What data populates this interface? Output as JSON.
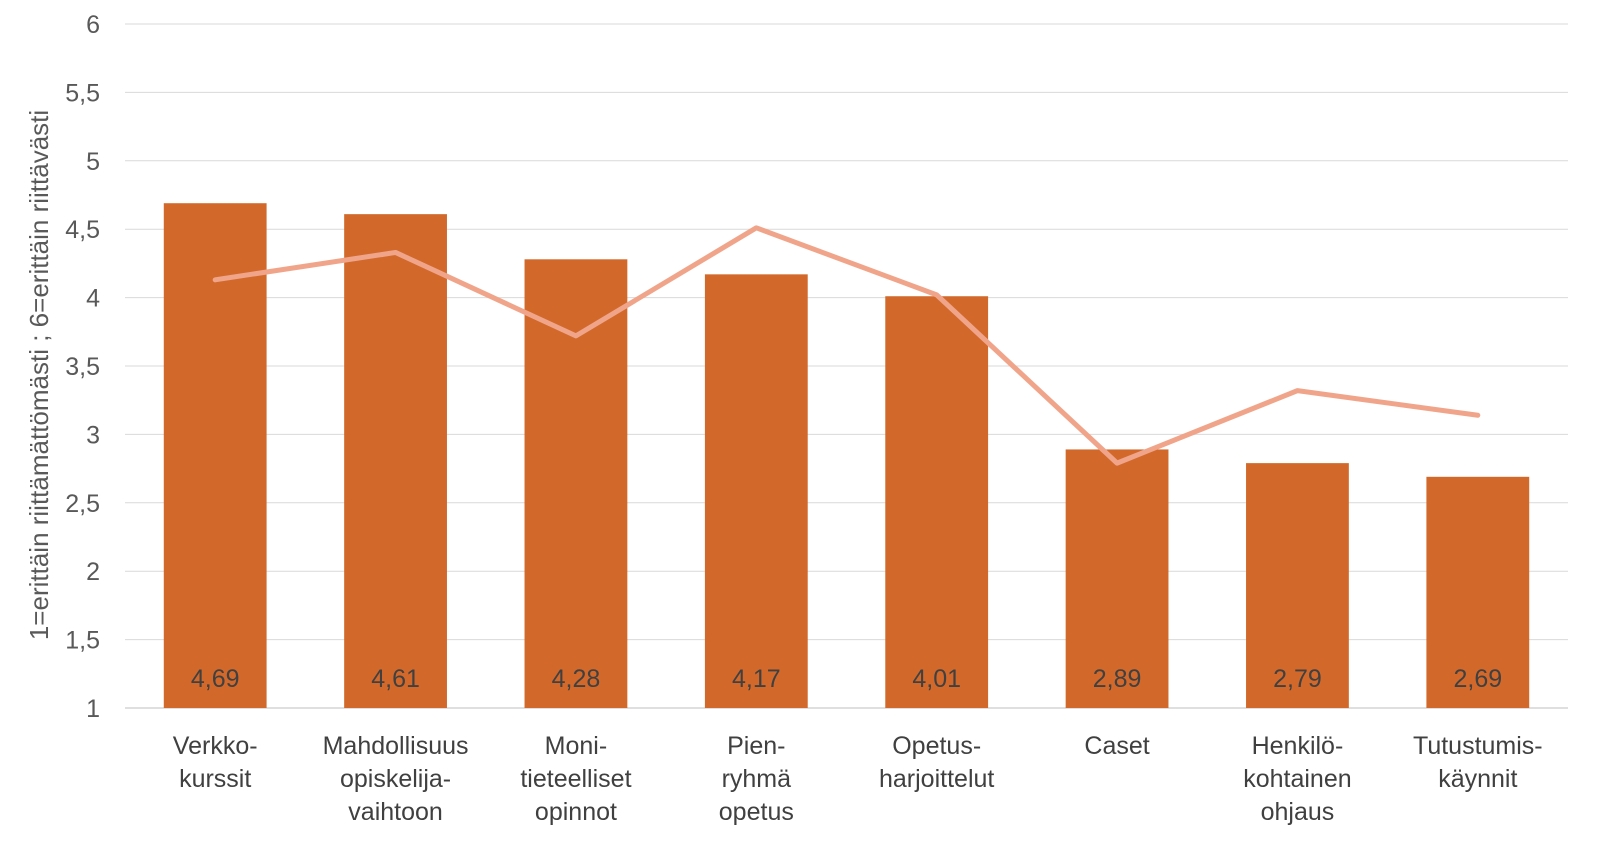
{
  "chart_data": {
    "type": "bar",
    "title": "",
    "xlabel": "",
    "ylabel": "1=erittäin riittämättömästi ; 6=erittäin riittävästi",
    "ylim": [
      1,
      6
    ],
    "yticks": [
      1,
      1.5,
      2,
      2.5,
      3,
      3.5,
      4,
      4.5,
      5,
      5.5,
      6
    ],
    "ytick_labels": [
      "1",
      "1,5",
      "2",
      "2,5",
      "3",
      "3,5",
      "4",
      "4,5",
      "5",
      "5,5",
      "6"
    ],
    "grid": true,
    "legend": "none",
    "categories": [
      [
        "Verkko-",
        "kurssit"
      ],
      [
        "Mahdollisuus",
        "opiskelija-",
        "vaihtoon"
      ],
      [
        "Moni-",
        "tieteelliset",
        "opinnot"
      ],
      [
        "Pien-",
        "ryhmä",
        "opetus"
      ],
      [
        "Opetus-",
        "harjoittelut"
      ],
      [
        "Caset"
      ],
      [
        "Henkilö-",
        "kohtainen",
        "ohjaus"
      ],
      [
        "Tutustumis-",
        "käynnit"
      ]
    ],
    "series": [
      {
        "type": "bar",
        "color": "#D2692B",
        "values": [
          4.69,
          4.61,
          4.28,
          4.17,
          4.01,
          2.89,
          2.79,
          2.69
        ],
        "labels": [
          "4,69",
          "4,61",
          "4,28",
          "4,17",
          "4,01",
          "2,89",
          "2,79",
          "2,69"
        ]
      },
      {
        "type": "line",
        "color": "#F0A58A",
        "values": [
          4.13,
          4.33,
          3.72,
          4.51,
          4.02,
          2.79,
          3.32,
          3.14
        ]
      }
    ]
  }
}
